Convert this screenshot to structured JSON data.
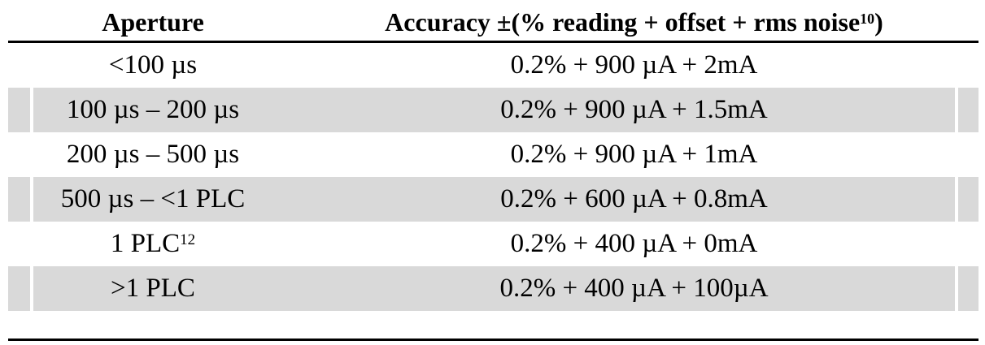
{
  "table": {
    "headers": {
      "aperture": "Aperture",
      "accuracy_main": "Accuracy ±(% reading + offset + rms noise",
      "accuracy_sup": "10",
      "accuracy_end": ")"
    },
    "rows": [
      {
        "aperture": "<100 µs",
        "aperture_sup": "",
        "accuracy": "0.2% + 900 µA + 2mA",
        "shaded": false
      },
      {
        "aperture": "100 µs – 200 µs",
        "aperture_sup": "",
        "accuracy": "0.2% + 900 µA + 1.5mA",
        "shaded": true
      },
      {
        "aperture": "200 µs – 500 µs",
        "aperture_sup": "",
        "accuracy": "0.2% + 900 µA + 1mA",
        "shaded": false
      },
      {
        "aperture": "500 µs – <1 PLC",
        "aperture_sup": "",
        "accuracy": "0.2% + 600 µA + 0.8mA",
        "shaded": true
      },
      {
        "aperture": "1 PLC",
        "aperture_sup": "12",
        "accuracy": "0.2% + 400 µA + 0mA",
        "shaded": false
      },
      {
        "aperture": ">1 PLC",
        "aperture_sup": "",
        "accuracy": "0.2% + 400 µA + 100µA",
        "shaded": true
      }
    ]
  },
  "colors": {
    "shade": "#d9d9d9",
    "rule": "#000000"
  }
}
